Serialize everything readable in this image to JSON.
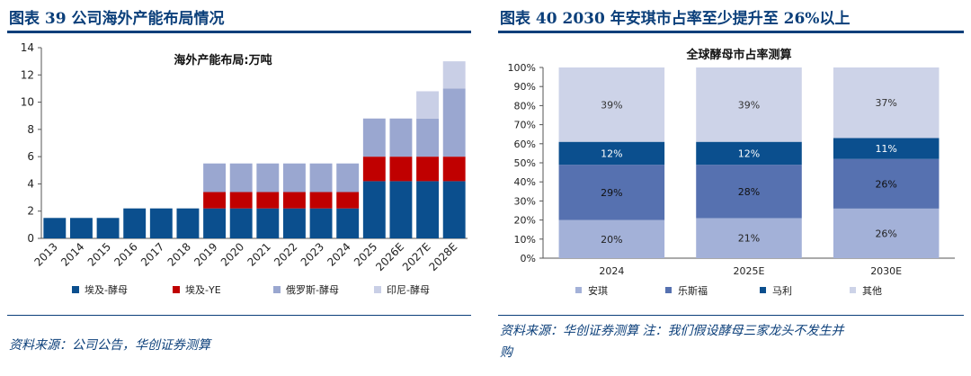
{
  "left": {
    "heading": "图表 39   公司海外产能布局情况",
    "source": "资料来源：公司公告，华创证券测算"
  },
  "right": {
    "heading": "图表 40   2030 年安琪市占率至少提升至 26%以上",
    "source_line1": "资料来源：华创证券测算   注：我们假设酵母三家龙头不发生并",
    "source_line2": "购"
  },
  "colors": {
    "heading": "#0b3f7a",
    "c1": "#0b4f8e",
    "c2": "#c00000",
    "c3": "#9aa7d0",
    "c4": "#c9cfe6",
    "anqi": "#a3b1d8",
    "lesaffre": "#5671b0",
    "mauri": "#0b4f8e",
    "other": "#cdd3e8"
  },
  "chart_data": [
    {
      "type": "bar",
      "stacked": true,
      "title": "海外产能布局:万吨",
      "categories": [
        "2013",
        "2014",
        "2015",
        "2016",
        "2017",
        "2018",
        "2019",
        "2020",
        "2021",
        "2022",
        "2023",
        "2024",
        "2025",
        "2026E",
        "2027E",
        "2028E"
      ],
      "series": [
        {
          "name": "埃及-酵母",
          "values": [
            1.5,
            1.5,
            1.5,
            2.2,
            2.2,
            2.2,
            2.2,
            2.2,
            2.2,
            2.2,
            2.2,
            2.2,
            4.2,
            4.2,
            4.2,
            4.2
          ]
        },
        {
          "name": "埃及-YE",
          "values": [
            0,
            0,
            0,
            0,
            0,
            0,
            1.2,
            1.2,
            1.2,
            1.2,
            1.2,
            1.2,
            1.8,
            1.8,
            1.8,
            1.8
          ]
        },
        {
          "name": "俄罗斯-酵母",
          "values": [
            0,
            0,
            0,
            0,
            0,
            0,
            2.1,
            2.1,
            2.1,
            2.1,
            2.1,
            2.1,
            2.8,
            2.8,
            2.8,
            5.0
          ]
        },
        {
          "name": "印尼-酵母",
          "values": [
            0,
            0,
            0,
            0,
            0,
            0,
            0,
            0,
            0,
            0,
            0,
            0,
            0,
            0,
            2.0,
            2.0
          ]
        }
      ],
      "yticks": [
        "0",
        "2",
        "4",
        "6",
        "8",
        "10",
        "12",
        "14"
      ],
      "ylim": [
        0,
        14
      ],
      "legend": "bottom"
    },
    {
      "type": "bar",
      "stacked": true,
      "percent": true,
      "title": "全球酵母市占率测算",
      "categories": [
        "2024",
        "2025E",
        "2030E"
      ],
      "series": [
        {
          "name": "安琪",
          "values": [
            20,
            21,
            26
          ],
          "labels": [
            "20%",
            "21%",
            "26%"
          ]
        },
        {
          "name": "乐斯福",
          "values": [
            29,
            28,
            26
          ],
          "labels": [
            "29%",
            "28%",
            "26%"
          ]
        },
        {
          "name": "马利",
          "values": [
            12,
            12,
            11
          ],
          "labels": [
            "12%",
            "12%",
            "11%"
          ]
        },
        {
          "name": "其他",
          "values": [
            39,
            39,
            37
          ],
          "labels": [
            "39%",
            "39%",
            "37%"
          ]
        }
      ],
      "yticks": [
        "0%",
        "10%",
        "20%",
        "30%",
        "40%",
        "50%",
        "60%",
        "70%",
        "80%",
        "90%",
        "100%"
      ],
      "ylim": [
        0,
        100
      ],
      "legend": "bottom"
    }
  ]
}
